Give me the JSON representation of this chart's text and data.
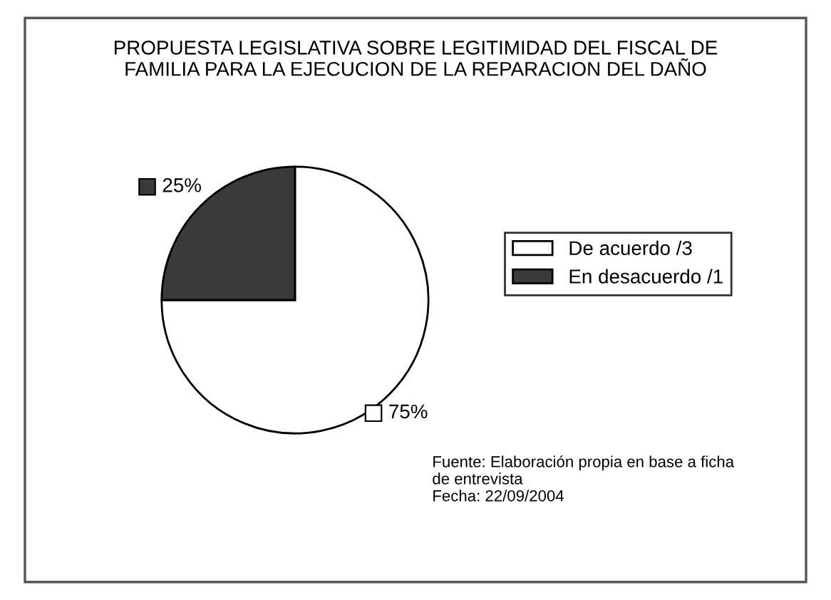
{
  "chart_data": {
    "type": "pie",
    "title": "PROPUESTA LEGISLATIVA SOBRE LEGITIMIDAD DEL FISCAL DE\nFAMILIA PARA LA EJECUCION DE LA REPARACION DEL DAÑO",
    "categories": [
      "De acuerdo /3",
      "En desacuerdo /1"
    ],
    "values": [
      75,
      25
    ],
    "colors": [
      "#ffffff",
      "#3a3a3a"
    ],
    "value_labels": [
      "75%",
      "25%"
    ],
    "legend": "right",
    "annotations": [
      "Fuente: Elaboración propia en base a ficha\nde entrevista\nFecha: 22/09/2004"
    ]
  }
}
